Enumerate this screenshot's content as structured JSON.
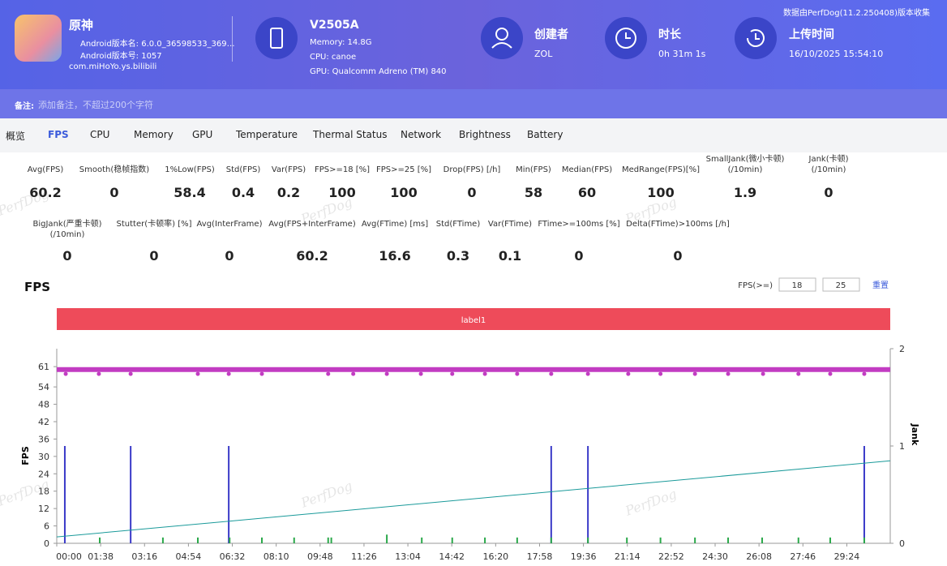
{
  "header": {
    "app_name": "原神",
    "android_version": "Android版本名: 6.0.0_36598533_369…",
    "android_code": "Android版本号: 1057",
    "package": "com.miHoYo.ys.bilibili",
    "device": "V2505A",
    "memory": "Memory: 14.8G",
    "cpu": "CPU: canoe",
    "gpu": "GPU: Qualcomm Adreno (TM) 840",
    "creator_label": "创建者",
    "creator": "ZOL",
    "duration_label": "时长",
    "duration": "0h 31m 1s",
    "upload_label": "上传时间",
    "upload_time": "16/10/2025 15:54:10",
    "source": "数据由PerfDog(11.2.250408)版本收集"
  },
  "note": {
    "label": "备注:",
    "placeholder": "添加备注，不超过200个字符"
  },
  "tabs": [
    "概览",
    "FPS",
    "CPU",
    "Memory",
    "GPU",
    "Temperature",
    "Thermal Status",
    "Network",
    "Brightness",
    "Battery"
  ],
  "watermark": "PerfDog",
  "metrics": [
    [
      {
        "label": "Avg(FPS)",
        "value": 60.2
      },
      {
        "label": "Smooth(稳帧指数)",
        "value": 0
      },
      {
        "label": "1%Low(FPS)",
        "value": 58.4
      },
      {
        "label": "Std(FPS)",
        "value": 0.4
      },
      {
        "label": "Var(FPS)",
        "value": 0.2
      },
      {
        "label": "FPS>=18 [%]",
        "value": 100
      },
      {
        "label": "FPS>=25 [%]",
        "value": 100
      },
      {
        "label": "Drop(FPS) [/h]",
        "value": 0
      },
      {
        "label": "Min(FPS)",
        "value": 58
      },
      {
        "label": "Median(FPS)",
        "value": 60
      },
      {
        "label": "MedRange(FPS)[%]",
        "value": 100
      },
      {
        "label": "SmallJank(微小卡顿)\n(/10min)",
        "value": 1.9
      },
      {
        "label": "Jank(卡顿)\n(/10min)",
        "value": 0
      }
    ],
    [
      {
        "label": "BigJank(严重卡顿)\n(/10min)",
        "value": 0
      },
      {
        "label": "Stutter(卡顿率) [%]",
        "value": 0
      },
      {
        "label": "Avg(InterFrame)",
        "value": 0
      },
      {
        "label": "Avg(FPS+InterFrame)",
        "value": 60.2
      },
      {
        "label": "Avg(FTime) [ms]",
        "value": 16.6
      },
      {
        "label": "Std(FTime)",
        "value": 0.3
      },
      {
        "label": "Var(FTime)",
        "value": 0.1
      },
      {
        "label": "FTime>=100ms [%]",
        "value": 0
      },
      {
        "label": "Delta(FTime)>100ms [/h]",
        "value": 0
      }
    ]
  ],
  "chart_data": {
    "type": "line",
    "title": "FPS",
    "threshold_label": "FPS(>=)",
    "thresholds": [
      18,
      25
    ],
    "reset": "重置",
    "band_label": "label1",
    "band_color": "#ee4b5a",
    "y_label": "FPS",
    "y2_label": "Jank",
    "xlim": [
      0,
      1861
    ],
    "ylim": [
      0,
      67.2
    ],
    "y2lim": [
      0,
      2
    ],
    "yticks": [
      0,
      6,
      12,
      18,
      24,
      30,
      36,
      42,
      48,
      54,
      61
    ],
    "y2ticks": [
      0,
      1,
      2
    ],
    "xticks": [
      {
        "value": 0,
        "label": "00:00"
      },
      {
        "value": 98,
        "label": "01:38"
      },
      {
        "value": 196,
        "label": "03:16"
      },
      {
        "value": 294,
        "label": "04:54"
      },
      {
        "value": 392,
        "label": "06:32"
      },
      {
        "value": 490,
        "label": "08:10"
      },
      {
        "value": 588,
        "label": "09:48"
      },
      {
        "value": 686,
        "label": "11:26"
      },
      {
        "value": 784,
        "label": "13:04"
      },
      {
        "value": 882,
        "label": "14:42"
      },
      {
        "value": 980,
        "label": "16:20"
      },
      {
        "value": 1078,
        "label": "17:58"
      },
      {
        "value": 1176,
        "label": "19:36"
      },
      {
        "value": 1274,
        "label": "21:14"
      },
      {
        "value": 1372,
        "label": "22:52"
      },
      {
        "value": 1470,
        "label": "24:30"
      },
      {
        "value": 1568,
        "label": "26:08"
      },
      {
        "value": 1666,
        "label": "27:46"
      },
      {
        "value": 1764,
        "label": "29:24"
      }
    ],
    "series": [
      {
        "type": "line",
        "color": "#c23cc2",
        "width": 6,
        "x": [
          0,
          1861
        ],
        "values": [
          60,
          60
        ]
      },
      {
        "type": "scatter",
        "color": "#c23cc2",
        "x": [
          20,
          94,
          165,
          315,
          384,
          458,
          606,
          662,
          737,
          813,
          883,
          956,
          1028,
          1104,
          1186,
          1276,
          1348,
          1425,
          1499,
          1577,
          1656,
          1727,
          1803
        ],
        "values": [
          58.5,
          58.5,
          58.5,
          58.5,
          58.5,
          58.5,
          58.5,
          58.5,
          58.5,
          58.5,
          58.5,
          58.5,
          58.5,
          58.5,
          58.5,
          58.5,
          58.5,
          58.5,
          58.5,
          58.5,
          58.5,
          58.5,
          58.5
        ]
      },
      {
        "type": "bar",
        "axis": "y2",
        "color": "#3a3ac8",
        "x": [
          18,
          165,
          384,
          1104,
          1186,
          1803
        ],
        "values": [
          1,
          1,
          1,
          1,
          1,
          1
        ]
      },
      {
        "type": "bar",
        "color": "#2aa84a",
        "x": [
          96,
          237,
          315,
          386,
          458,
          530,
          606,
          613,
          737,
          815,
          883,
          956,
          1028,
          1104,
          1186,
          1273,
          1348,
          1425,
          1499,
          1575,
          1656,
          1727,
          1803
        ],
        "values": [
          2,
          2,
          2,
          2,
          2,
          2,
          2,
          2,
          3,
          2,
          2,
          2,
          2,
          2,
          2,
          2,
          2,
          2,
          2,
          2,
          2,
          2,
          2
        ]
      },
      {
        "type": "line",
        "color": "#1a9a9a",
        "width": 1,
        "x": [
          0,
          1861
        ],
        "values": [
          2.2,
          28.5
        ]
      }
    ]
  }
}
